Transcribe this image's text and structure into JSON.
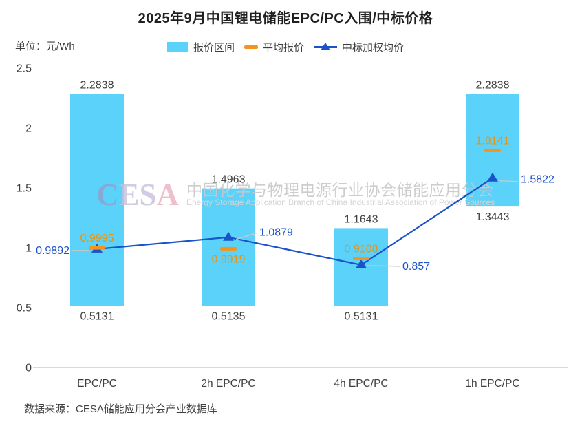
{
  "page": {
    "title": "2025年9月中国锂电储能EPC/PC入围/中标价格",
    "unit_label": "单位：元/Wh",
    "source": "数据来源：CESA储能应用分会产业数据库"
  },
  "legend": {
    "items": [
      {
        "label": "报价区间",
        "swatch": "range-bar",
        "color": "#5bd2fa"
      },
      {
        "label": "平均报价",
        "swatch": "dash",
        "color": "#f2941d"
      },
      {
        "label": "中标加权均价",
        "swatch": "line-triangle",
        "color": "#1a53c9"
      }
    ]
  },
  "watermark": {
    "logo_letters": [
      {
        "char": "C",
        "color": "#8ea2cc"
      },
      {
        "char": "E",
        "color": "#c6c0de"
      },
      {
        "char": "S",
        "color": "#c6c0de"
      },
      {
        "char": "A",
        "color": "#eab1c0"
      }
    ],
    "cn": "中国化学与物理电源行业协会储能应用分会",
    "en": "Energy Storage Application Branch of China Industrial Association of Power Sources"
  },
  "chart_data": {
    "type": "bar",
    "subtype": "floating-range-bars-with-markers-and-line",
    "title": "2025年9月中国锂电储能EPC/PC入围/中标价格",
    "unit": "元/Wh",
    "xlabel": "",
    "ylabel": "元/Wh",
    "ylim": [
      0,
      2.5
    ],
    "yticks": [
      "0",
      "0.5",
      "1",
      "1.5",
      "2",
      "2.5"
    ],
    "grid": false,
    "legend_position": "top",
    "categories": [
      "EPC/PC",
      "2h EPC/PC",
      "4h EPC/PC",
      "1h EPC/PC"
    ],
    "series": [
      {
        "name": "报价区间",
        "type": "range_bar",
        "color": "#5bd2fa",
        "min": [
          "0.5131",
          "0.5135",
          "0.5131",
          "1.3443"
        ],
        "max": [
          "2.2838",
          "1.4963",
          "1.1643",
          "2.2838"
        ]
      },
      {
        "name": "平均报价",
        "type": "tick_marker",
        "color": "#f2941d",
        "label_color": "#e8930f",
        "values": [
          "0.9995",
          "0.9919",
          "0.9108",
          "1.8141"
        ]
      },
      {
        "name": "中标加权均价",
        "type": "line_with_triangle_markers",
        "color": "#1a53c9",
        "label_color": "#1d52c8",
        "values": [
          "0.9892",
          "1.0879",
          "0.857",
          "1.5822"
        ]
      }
    ],
    "colors": {
      "axis_line": "#d9d9d9",
      "leader_line": "#c8c8c8",
      "tick_text": "#3f3f3f",
      "value_text": "#3f3f3f"
    }
  }
}
